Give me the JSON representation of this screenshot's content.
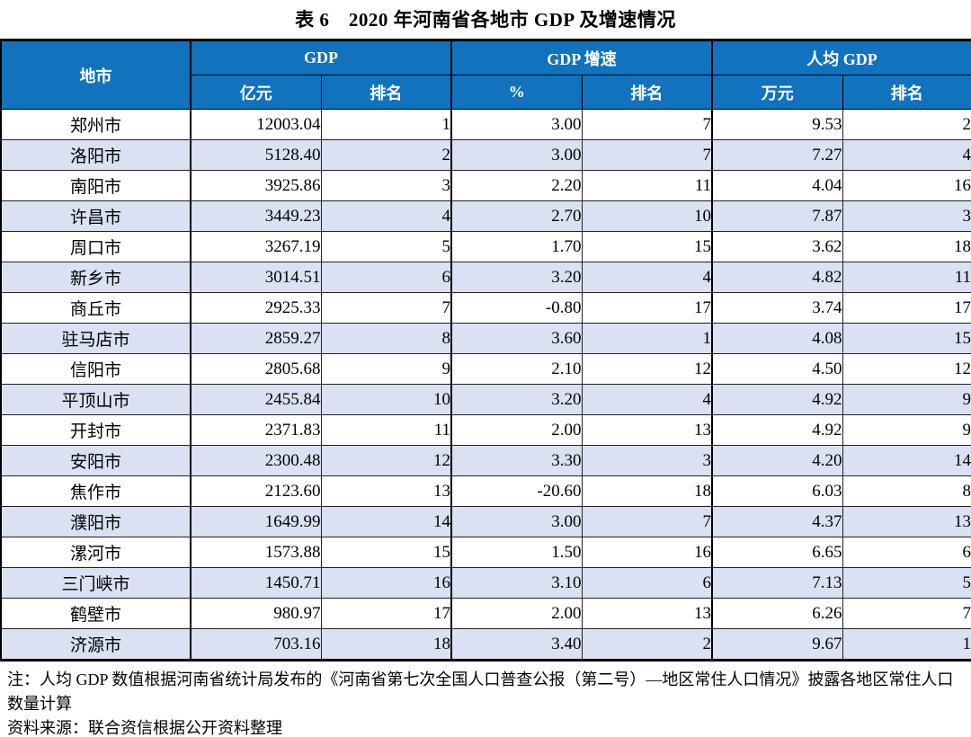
{
  "title": "表 6　2020 年河南省各地市 GDP 及增速情况",
  "table": {
    "header": {
      "city": "地市",
      "groups": [
        {
          "label": "GDP",
          "sub": [
            "亿元",
            "排名"
          ]
        },
        {
          "label": "GDP 增速",
          "sub": [
            "%",
            "排名"
          ]
        },
        {
          "label": "人均 GDP",
          "sub": [
            "万元",
            "排名"
          ]
        }
      ]
    },
    "rows": [
      [
        "郑州市",
        "12003.04",
        "1",
        "3.00",
        "7",
        "9.53",
        "2"
      ],
      [
        "洛阳市",
        "5128.40",
        "2",
        "3.00",
        "7",
        "7.27",
        "4"
      ],
      [
        "南阳市",
        "3925.86",
        "3",
        "2.20",
        "11",
        "4.04",
        "16"
      ],
      [
        "许昌市",
        "3449.23",
        "4",
        "2.70",
        "10",
        "7.87",
        "3"
      ],
      [
        "周口市",
        "3267.19",
        "5",
        "1.70",
        "15",
        "3.62",
        "18"
      ],
      [
        "新乡市",
        "3014.51",
        "6",
        "3.20",
        "4",
        "4.82",
        "11"
      ],
      [
        "商丘市",
        "2925.33",
        "7",
        "-0.80",
        "17",
        "3.74",
        "17"
      ],
      [
        "驻马店市",
        "2859.27",
        "8",
        "3.60",
        "1",
        "4.08",
        "15"
      ],
      [
        "信阳市",
        "2805.68",
        "9",
        "2.10",
        "12",
        "4.50",
        "12"
      ],
      [
        "平顶山市",
        "2455.84",
        "10",
        "3.20",
        "4",
        "4.92",
        "9"
      ],
      [
        "开封市",
        "2371.83",
        "11",
        "2.00",
        "13",
        "4.92",
        "9"
      ],
      [
        "安阳市",
        "2300.48",
        "12",
        "3.30",
        "3",
        "4.20",
        "14"
      ],
      [
        "焦作市",
        "2123.60",
        "13",
        "-20.60",
        "18",
        "6.03",
        "8"
      ],
      [
        "濮阳市",
        "1649.99",
        "14",
        "3.00",
        "7",
        "4.37",
        "13"
      ],
      [
        "漯河市",
        "1573.88",
        "15",
        "1.50",
        "16",
        "6.65",
        "6"
      ],
      [
        "三门峡市",
        "1450.71",
        "16",
        "3.10",
        "6",
        "7.13",
        "5"
      ],
      [
        "鹤壁市",
        "980.97",
        "17",
        "2.00",
        "13",
        "6.26",
        "7"
      ],
      [
        "济源市",
        "703.16",
        "18",
        "3.40",
        "2",
        "9.67",
        "1"
      ]
    ]
  },
  "notes": [
    "注：人均 GDP 数值根据河南省统计局发布的《河南省第七次全国人口普查公报（第二号）—地区常住人口情况》披露各地区常住人口数量计算",
    "资料来源：联合资信根据公开资料整理"
  ],
  "colors": {
    "header_bg": "#1172BE",
    "header_text": "#FFFFFF",
    "row_alt_bg": "#D9E1F2",
    "border": "#000000"
  }
}
